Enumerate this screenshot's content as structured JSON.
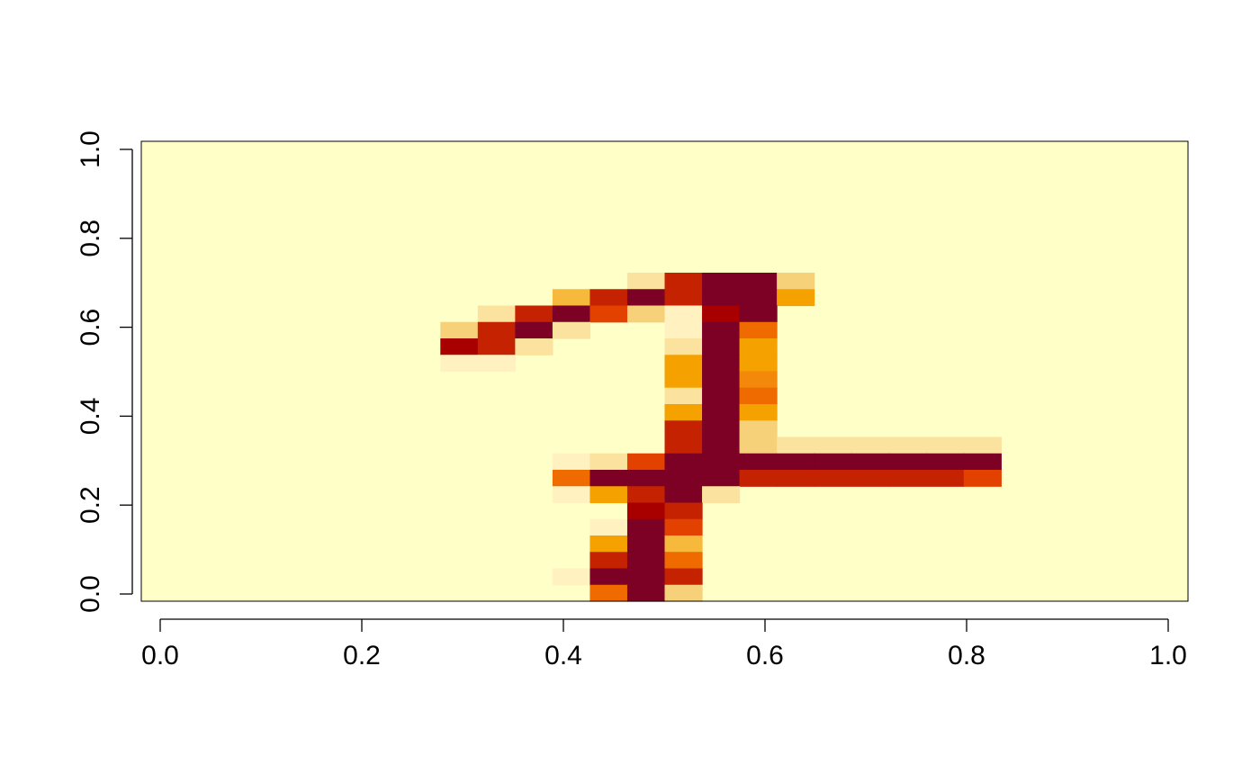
{
  "chart_data": {
    "type": "heatmap",
    "title": "",
    "xlabel": "",
    "ylabel": "",
    "xlim": [
      0,
      1
    ],
    "ylim": [
      0,
      1
    ],
    "x_ticks": [
      0.0,
      0.2,
      0.4,
      0.6,
      0.8,
      1.0
    ],
    "y_ticks": [
      0.0,
      0.2,
      0.4,
      0.6,
      0.8,
      1.0
    ],
    "x_tick_labels": [
      "0.0",
      "0.2",
      "0.4",
      "0.6",
      "0.8",
      "1.0"
    ],
    "y_tick_labels": [
      "0.0",
      "0.2",
      "0.4",
      "0.6",
      "0.8",
      "1.0"
    ],
    "grid": false,
    "legend": "none",
    "colors": {
      "background": "#FFFFC8",
      "scale": [
        "#FFFFC8",
        "#FFF2C0",
        "#FBE29E",
        "#F7D07A",
        "#F6B93C",
        "#F5A200",
        "#F3880A",
        "#EF6B00",
        "#E24100",
        "#C42200",
        "#A80000",
        "#7D0025"
      ]
    },
    "grid_size": {
      "rows": 28,
      "cols": 28,
      "note_row_order": "top-to-bottom"
    },
    "value_range": [
      0,
      11
    ],
    "matrix_rows": [
      "0000000000000000000000000000",
      "0000000000000000000000000000",
      "0000000000000000000000000000",
      "0000000000000000000000000000",
      "0000000000000000000000000000",
      "0000000000000000000000000000",
      "0000000000000000000000000000",
      "0000000000000000000000000000",
      "0000000000000000000000000000",
      "0000000000000000000000000000",
      "000000000000000002911300000000",
      "0000000000000049119110500000",
      "00000000000029118829111100000",
      "000000000031189210011900000",
      "00000000003911200021170000000",
      "00000000000000002117000000000",
      "0000000000000000311550000000",
      "0000000000000000511650000000",
      "0000000000000000211800000000",
      "0000000000000000611600000000",
      "0000000000000000911300000000",
      "000000000000000091132222222220",
      "000000000001288111111111111111110",
      "0000000000071111111111999999980",
      "0000000000015911200000000000",
      "0000000000000109000000000000",
      "0000000000000118000000000000",
      "000000000000000000000000000"
    ]
  },
  "heatmap_cells": [
    [
      16,
      10,
      2
    ],
    [
      17,
      10,
      9
    ],
    [
      18,
      10,
      11
    ],
    [
      19,
      10,
      11
    ],
    [
      20,
      10,
      3
    ],
    [
      14,
      11,
      4
    ],
    [
      15,
      11,
      9
    ],
    [
      16,
      11,
      11
    ],
    [
      17,
      11,
      9
    ],
    [
      18,
      11,
      11
    ],
    [
      19,
      11,
      11
    ],
    [
      20,
      11,
      5
    ],
    [
      12,
      12,
      2
    ],
    [
      13,
      12,
      9
    ],
    [
      14,
      12,
      11
    ],
    [
      15,
      12,
      8
    ],
    [
      16,
      12,
      3
    ],
    [
      17,
      12,
      1
    ],
    [
      18,
      12,
      10
    ],
    [
      19,
      12,
      11
    ],
    [
      11,
      13,
      3
    ],
    [
      12,
      13,
      9
    ],
    [
      13,
      13,
      11
    ],
    [
      14,
      13,
      2
    ],
    [
      17,
      13,
      1
    ],
    [
      18,
      13,
      11
    ],
    [
      19,
      13,
      7
    ],
    [
      11,
      14,
      10
    ],
    [
      12,
      14,
      9
    ],
    [
      13,
      14,
      2
    ],
    [
      17,
      14,
      2
    ],
    [
      18,
      14,
      11
    ],
    [
      19,
      14,
      5
    ],
    [
      11,
      15,
      1
    ],
    [
      12,
      15,
      1
    ],
    [
      17,
      15,
      5
    ],
    [
      18,
      15,
      11
    ],
    [
      19,
      15,
      5
    ],
    [
      17,
      16,
      5
    ],
    [
      18,
      16,
      11
    ],
    [
      19,
      16,
      6
    ],
    [
      17,
      17,
      2
    ],
    [
      18,
      17,
      11
    ],
    [
      19,
      17,
      7
    ],
    [
      17,
      18,
      5
    ],
    [
      18,
      18,
      11
    ],
    [
      19,
      18,
      5
    ],
    [
      17,
      19,
      9
    ],
    [
      18,
      19,
      11
    ],
    [
      19,
      19,
      3
    ],
    [
      17,
      20,
      9
    ],
    [
      18,
      20,
      11
    ],
    [
      19,
      20,
      3
    ],
    [
      20,
      20,
      2
    ],
    [
      21,
      20,
      2
    ],
    [
      22,
      20,
      2
    ],
    [
      23,
      20,
      2
    ],
    [
      24,
      20,
      2
    ],
    [
      25,
      20,
      2
    ],
    [
      14,
      21,
      1
    ],
    [
      15,
      21,
      2
    ],
    [
      16,
      21,
      8
    ],
    [
      17,
      21,
      11
    ],
    [
      18,
      21,
      11
    ],
    [
      19,
      21,
      11
    ],
    [
      20,
      21,
      11
    ],
    [
      21,
      21,
      11
    ],
    [
      22,
      21,
      11
    ],
    [
      23,
      21,
      11
    ],
    [
      24,
      21,
      11
    ],
    [
      25,
      21,
      11
    ],
    [
      14,
      22,
      7
    ],
    [
      15,
      22,
      11
    ],
    [
      16,
      22,
      11
    ],
    [
      17,
      22,
      11
    ],
    [
      18,
      22,
      11
    ],
    [
      19,
      22,
      9
    ],
    [
      20,
      22,
      9
    ],
    [
      21,
      22,
      9
    ],
    [
      22,
      22,
      9
    ],
    [
      23,
      22,
      9
    ],
    [
      24,
      22,
      9
    ],
    [
      25,
      22,
      8
    ],
    [
      14,
      23,
      1
    ],
    [
      15,
      23,
      5
    ],
    [
      16,
      23,
      9
    ],
    [
      17,
      23,
      11
    ],
    [
      18,
      23,
      2
    ],
    [
      16,
      24,
      10
    ],
    [
      17,
      24,
      9
    ],
    [
      15,
      25,
      1
    ],
    [
      16,
      25,
      11
    ],
    [
      17,
      25,
      8
    ],
    [
      15,
      26,
      5
    ],
    [
      16,
      26,
      11
    ],
    [
      17,
      26,
      4
    ],
    [
      15,
      27,
      9
    ],
    [
      16,
      27,
      11
    ],
    [
      17,
      27,
      7
    ],
    [
      14,
      28,
      1
    ],
    [
      15,
      28,
      11
    ],
    [
      16,
      28,
      11
    ],
    [
      17,
      28,
      9
    ],
    [
      15,
      29,
      7
    ],
    [
      16,
      29,
      11
    ],
    [
      17,
      29,
      3
    ]
  ]
}
